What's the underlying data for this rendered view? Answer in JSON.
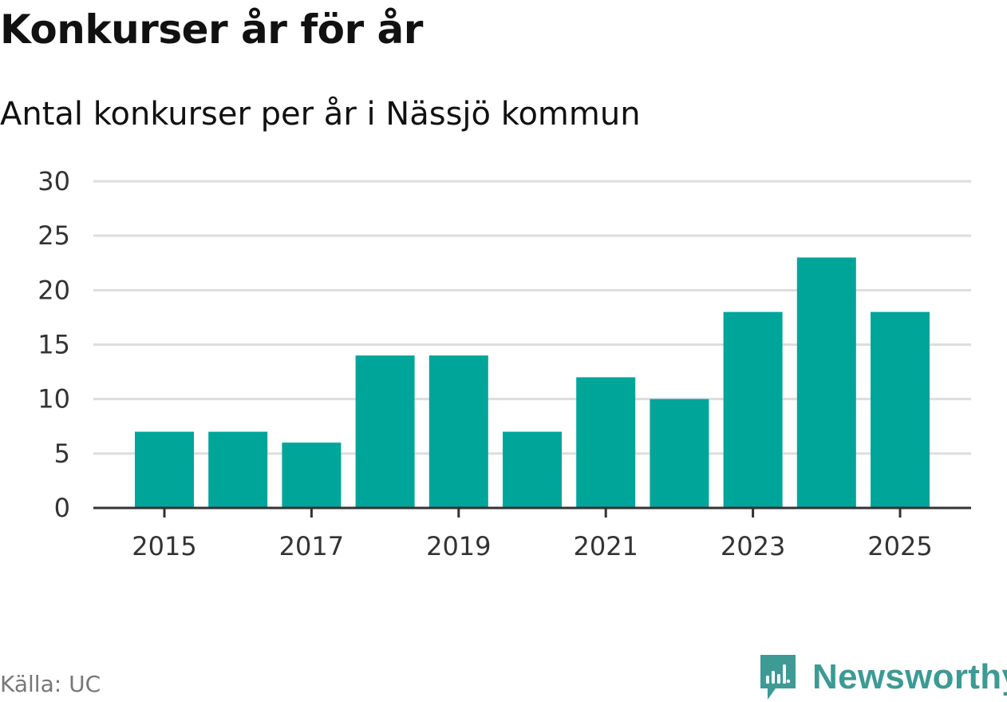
{
  "title": "Konkurser år för år",
  "subtitle": "Antal konkurser per år i Nässjö kommun",
  "source": "Källa: UC",
  "brand": {
    "name": "Newsworthy",
    "icon": "newsworthy-logo-icon",
    "color": "#3d9a95"
  },
  "chart_data": {
    "type": "bar",
    "categories": [
      "2015",
      "2016",
      "2017",
      "2018",
      "2019",
      "2020",
      "2021",
      "2022",
      "2023",
      "2024",
      "2025"
    ],
    "values": [
      7,
      7,
      6,
      14,
      14,
      7,
      12,
      10,
      18,
      23,
      18
    ],
    "x_tick_labels": [
      "2015",
      "2017",
      "2019",
      "2021",
      "2023",
      "2025"
    ],
    "y_ticks": [
      0,
      5,
      10,
      15,
      20,
      25,
      30
    ],
    "ylim": [
      0,
      30
    ],
    "grid": true,
    "bar_color": "#00a59a",
    "grid_color": "#dddddd",
    "axis_color": "#333333"
  }
}
